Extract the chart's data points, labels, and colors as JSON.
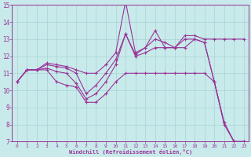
{
  "xlabel": "Windchill (Refroidissement éolien,°C)",
  "line_color": "#993399",
  "bg_color": "#c8eaea",
  "grid_color": "#a8d4d4",
  "xlim": [
    -0.5,
    23.5
  ],
  "ylim": [
    7,
    15
  ],
  "xticks": [
    0,
    1,
    2,
    3,
    4,
    5,
    6,
    7,
    8,
    9,
    10,
    11,
    12,
    13,
    14,
    15,
    16,
    17,
    18,
    19,
    20,
    21,
    22,
    23
  ],
  "yticks": [
    7,
    8,
    9,
    10,
    11,
    12,
    13,
    14,
    15
  ],
  "series": [
    [
      10.5,
      11.2,
      11.2,
      11.6,
      11.5,
      11.4,
      11.2,
      11.0,
      11.0,
      11.5,
      12.2,
      15.2,
      12.2,
      12.5,
      13.0,
      12.8,
      12.5,
      13.2,
      13.2,
      13.0,
      13.0,
      13.0,
      13.0,
      13.0
    ],
    [
      10.5,
      11.2,
      11.2,
      11.5,
      11.4,
      11.3,
      11.0,
      9.8,
      10.3,
      11.0,
      11.8,
      13.3,
      12.1,
      12.5,
      13.5,
      12.5,
      12.5,
      13.0,
      13.0,
      12.8,
      10.5,
      8.0,
      7.0,
      7.0
    ],
    [
      10.5,
      11.2,
      11.2,
      11.3,
      11.1,
      11.0,
      10.4,
      9.5,
      9.8,
      10.5,
      11.5,
      13.3,
      12.0,
      12.2,
      12.5,
      12.5,
      12.5,
      12.5,
      13.0,
      12.8,
      10.5,
      8.1,
      7.0,
      7.0
    ],
    [
      10.5,
      11.2,
      11.2,
      11.2,
      10.5,
      10.3,
      10.2,
      9.3,
      9.3,
      9.8,
      10.5,
      11.0,
      11.0,
      11.0,
      11.0,
      11.0,
      11.0,
      11.0,
      11.0,
      11.0,
      10.5,
      8.1,
      7.0,
      7.0
    ]
  ]
}
